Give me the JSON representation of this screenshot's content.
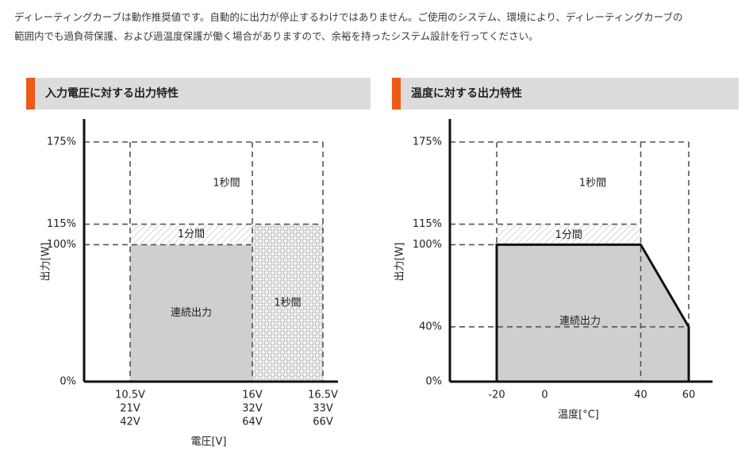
{
  "intro": {
    "line1": "ディレーティングカーブは動作推奨値です。自動的に出力が停止するわけではありません。ご使用のシステム、環境により、ディレーティングカーブの",
    "line2": "範囲内でも過負荷保護、および過温度保護が働く場合がありますので、余裕を持ったシステム設計を行ってください。"
  },
  "colors": {
    "accent": "#ee5a14",
    "header_bg": "#dcdcdc",
    "fill": "#cfcfcf",
    "axis": "#111111",
    "dash": "#555555"
  },
  "chart_data": [
    {
      "type": "area",
      "title": "入力電圧に対する出力特性",
      "ylabel": "出力[W]",
      "xlabel": "電圧[V]",
      "y_ticks": [
        {
          "value": 0,
          "label": "0%"
        },
        {
          "value": 100,
          "label": "100%"
        },
        {
          "value": 115,
          "label": "115%"
        },
        {
          "value": 175,
          "label": "175%"
        }
      ],
      "x_ticks": [
        {
          "label": "10.5V\n21V\n42V"
        },
        {
          "label": "16V\n32V\n64V"
        },
        {
          "label": "16.5V\n33V\n66V"
        }
      ],
      "regions": [
        {
          "label": "連続出力",
          "x_from": 0,
          "x_to": 1,
          "y_from": 0,
          "y_to": 100,
          "style": "solid"
        },
        {
          "label": "1分間",
          "x_from": 0,
          "x_to": 1,
          "y_from": 100,
          "y_to": 115,
          "style": "hatch"
        },
        {
          "label": "1秒間",
          "x_from": 1,
          "x_to": 2,
          "y_from": 0,
          "y_to": 115,
          "style": "dots"
        },
        {
          "label": "1秒間",
          "x_from": 0,
          "x_to": 2,
          "y_from": 115,
          "y_to": 175,
          "style": "empty"
        }
      ]
    },
    {
      "type": "area",
      "title": "温度に対する出力特性",
      "ylabel": "出力[W]",
      "xlabel": "温度[°C]",
      "y_ticks": [
        {
          "value": 0,
          "label": "0%"
        },
        {
          "value": 40,
          "label": "40%"
        },
        {
          "value": 100,
          "label": "100%"
        },
        {
          "value": 115,
          "label": "115%"
        },
        {
          "value": 175,
          "label": "175%"
        }
      ],
      "x_ticks": [
        {
          "value": -20,
          "label": "-20"
        },
        {
          "value": 0,
          "label": "0"
        },
        {
          "value": 40,
          "label": "40"
        },
        {
          "value": 60,
          "label": "60"
        }
      ],
      "curve": [
        {
          "x": -20,
          "y": 0
        },
        {
          "x": -20,
          "y": 100
        },
        {
          "x": 40,
          "y": 100
        },
        {
          "x": 60,
          "y": 40
        },
        {
          "x": 60,
          "y": 0
        }
      ],
      "regions": [
        {
          "label": "連続出力",
          "style": "solid"
        },
        {
          "label": "1分間",
          "x_from": -20,
          "x_to": 40,
          "y_from": 100,
          "y_to": 115,
          "style": "hatch"
        },
        {
          "label": "1秒間",
          "x_from": -20,
          "x_to": 60,
          "y_from": 115,
          "y_to": 175,
          "style": "empty"
        }
      ]
    }
  ]
}
